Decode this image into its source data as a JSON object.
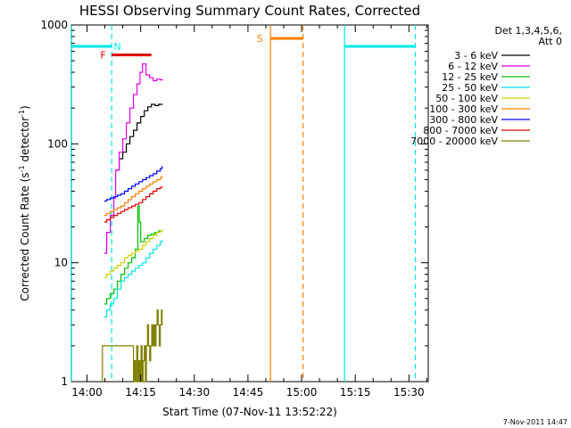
{
  "chart_data": {
    "type": "line",
    "title": "HESSI Observing Summary Count Rates, Corrected",
    "xlabel": "Start Time (07-Nov-11 13:52:22)",
    "ylabel_main": "Corrected Count Rate (s",
    "ylabel_sup1": "-1",
    "ylabel_mid": " detector",
    "ylabel_sup2": "-1",
    "ylabel_end": ")",
    "y_scale": "log",
    "ylim": [
      1,
      1000
    ],
    "xlim_minutes": [
      -4.37,
      95.4
    ],
    "x_ticks": [
      {
        "min": 0,
        "label": "14:00"
      },
      {
        "min": 15,
        "label": "14:15"
      },
      {
        "min": 30,
        "label": "14:30"
      },
      {
        "min": 45,
        "label": "14:45"
      },
      {
        "min": 60,
        "label": "15:00"
      },
      {
        "min": 75,
        "label": "15:15"
      },
      {
        "min": 90,
        "label": "15:30"
      }
    ],
    "y_ticks": [
      {
        "value": 1,
        "label": "1"
      },
      {
        "value": 10,
        "label": "10"
      },
      {
        "value": 100,
        "label": "100"
      },
      {
        "value": 1000,
        "label": "1000"
      }
    ],
    "legend_title": [
      "Det 1,3,4,5,6,",
      "Att 0"
    ],
    "legend_position": "right, outside plot",
    "series": [
      {
        "name": "3 - 6 keV",
        "color": "#000000",
        "x": [
          8.0,
          9.0,
          10.0,
          11.0,
          12.0,
          13.0,
          14.0,
          15.0,
          16.0,
          17.0,
          18.0,
          19.0,
          20.0,
          21.0
        ],
        "y": [
          60,
          75,
          85,
          100,
          115,
          130,
          150,
          170,
          190,
          205,
          215,
          210,
          215,
          212
        ]
      },
      {
        "name": "6 - 12 keV",
        "color": "#e000e0",
        "x": [
          4.8,
          5.5,
          6.5,
          7.5,
          8.0,
          9.0,
          10.0,
          11.0,
          12.0,
          13.0,
          14.0,
          14.8,
          15.5,
          16.5,
          17.5,
          18.5,
          19.5,
          20.5,
          21.0
        ],
        "y": [
          12,
          18,
          25,
          35,
          60,
          85,
          110,
          150,
          200,
          260,
          320,
          400,
          470,
          380,
          360,
          340,
          350,
          345,
          350
        ]
      },
      {
        "name": "12 - 25 keV",
        "color": "#00c000",
        "x": [
          4.8,
          5.5,
          6.5,
          7.5,
          8.5,
          9.5,
          10.5,
          11.5,
          12.5,
          13.5,
          14.2,
          14.6,
          15.0,
          16.0,
          17.0,
          18.0,
          19.0,
          20.0,
          21.0
        ],
        "y": [
          4.5,
          5.0,
          5.5,
          6.0,
          7.0,
          8.0,
          9.0,
          10.0,
          11.0,
          13.0,
          30.0,
          22.0,
          15.0,
          16.0,
          17.0,
          17.5,
          18.0,
          18.5,
          19.0
        ]
      },
      {
        "name": "25 - 50 keV",
        "color": "#00e8e8",
        "x": [
          4.8,
          5.5,
          6.5,
          7.5,
          8.5,
          9.5,
          10.5,
          11.5,
          12.5,
          13.5,
          14.5,
          15.5,
          16.5,
          17.5,
          18.5,
          19.5,
          20.5,
          21.0
        ],
        "y": [
          3.5,
          4.0,
          4.5,
          5.0,
          6.0,
          7.0,
          7.5,
          8.0,
          8.5,
          9.0,
          9.5,
          10.0,
          11.0,
          12.0,
          13.0,
          14.0,
          15.0,
          15.5
        ]
      },
      {
        "name": "50 - 100 keV",
        "color": "#d0d000",
        "x": [
          4.8,
          5.5,
          6.5,
          7.5,
          8.5,
          9.5,
          10.5,
          11.5,
          12.5,
          13.5,
          14.5,
          15.5,
          16.5,
          17.5,
          18.5,
          19.5,
          20.5,
          21.0
        ],
        "y": [
          7.5,
          8.0,
          8.5,
          9.0,
          9.5,
          10.0,
          11.0,
          11.5,
          12.0,
          12.5,
          13.0,
          14.0,
          15.0,
          16.0,
          17.0,
          18.0,
          18.5,
          19.0
        ]
      },
      {
        "name": "100 - 300 keV",
        "color": "#ff8000",
        "x": [
          4.8,
          5.5,
          6.5,
          7.5,
          8.5,
          9.5,
          10.5,
          11.5,
          12.5,
          13.5,
          14.5,
          15.5,
          16.5,
          17.5,
          18.5,
          19.5,
          20.5,
          21.0
        ],
        "y": [
          25,
          26,
          27,
          28,
          29,
          30,
          32,
          34,
          36,
          38,
          40,
          42,
          44,
          46,
          48,
          50,
          52,
          54
        ]
      },
      {
        "name": "300 - 800 keV",
        "color": "#0000ff",
        "x": [
          4.8,
          5.5,
          6.5,
          7.5,
          8.5,
          9.5,
          10.5,
          11.5,
          12.5,
          13.5,
          14.5,
          15.5,
          16.5,
          17.5,
          18.5,
          19.5,
          20.5,
          21.0
        ],
        "y": [
          33,
          34,
          35,
          36,
          37,
          38,
          40,
          42,
          44,
          46,
          48,
          50,
          52,
          54,
          56,
          59,
          62,
          65
        ]
      },
      {
        "name": "800 - 7000 keV",
        "color": "#e00000",
        "x": [
          4.8,
          5.5,
          6.5,
          7.5,
          8.5,
          9.5,
          10.5,
          11.5,
          12.5,
          13.5,
          14.5,
          15.5,
          16.5,
          17.5,
          18.5,
          19.5,
          20.5,
          21.0
        ],
        "y": [
          22,
          23,
          24,
          25,
          26,
          27,
          28,
          29,
          30,
          31,
          32,
          34,
          36,
          38,
          40,
          42,
          43,
          44
        ]
      },
      {
        "name": "7000 - 20000 keV",
        "color": "#808000",
        "x": [
          4.3,
          4.3,
          13.0,
          13.3,
          13.6,
          13.9,
          14.2,
          14.5,
          14.8,
          15.1,
          15.4,
          15.7,
          16.0,
          16.3,
          16.6,
          16.9,
          17.2,
          17.5,
          17.8,
          18.1,
          18.4,
          18.7,
          19.0,
          19.3,
          19.6,
          19.9,
          20.2,
          20.5,
          20.8,
          21.0
        ],
        "y": [
          1,
          2,
          1,
          1.5,
          1,
          2,
          1,
          1.5,
          1,
          2,
          1,
          1.5,
          2,
          1,
          2,
          3,
          2,
          1.5,
          2,
          3,
          2,
          3,
          2,
          3,
          4,
          3,
          2,
          3,
          4,
          3
        ]
      }
    ],
    "flag_lines": [
      {
        "id": "N",
        "color": "#00e8e8",
        "x_min": 6.9,
        "style": "dashed"
      },
      {
        "id": "S",
        "color": "#ff8000",
        "x_min": 51.3,
        "style": "solid"
      },
      {
        "id": "S",
        "color": "#ff8000",
        "x_min": 60.4,
        "style": "dashed"
      },
      {
        "id": "N",
        "color": "#00e8e8",
        "x_min": 72.0,
        "style": "solid"
      },
      {
        "id": "N",
        "color": "#00e8e8",
        "x_min": 91.8,
        "style": "dashed"
      },
      {
        "id": "N",
        "color": "#00e8e8",
        "x_min": -4.3,
        "style": "solid"
      }
    ],
    "flag_bars": [
      {
        "label": "N",
        "color": "#00e8e8",
        "x_start": -4.3,
        "x_end": 6.9,
        "y": 660,
        "label_x": 8.5
      },
      {
        "label": "F",
        "color": "#e00000",
        "x_start": 6.9,
        "x_end": 18.0,
        "y": 560,
        "label_x": 4.5
      },
      {
        "label": "S",
        "color": "#ff8000",
        "x_start": 51.3,
        "x_end": 60.4,
        "y": 770,
        "label_x": 48.3
      },
      {
        "label": "N",
        "color": "#00e8e8",
        "x_start": 72.0,
        "x_end": 91.8,
        "y": 660,
        "label_x": 0
      }
    ],
    "date_stamp": "7-Nov-2011 14:47",
    "grid": false
  }
}
